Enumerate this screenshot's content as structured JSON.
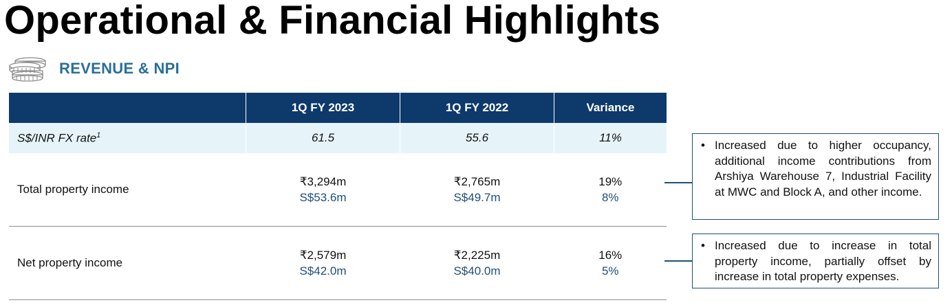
{
  "page_title": "Operational & Financial Highlights",
  "section": {
    "label": "REVENUE & NPI",
    "icon": "coins-icon"
  },
  "table": {
    "headers": [
      "",
      "1Q FY 2023",
      "1Q FY 2022",
      "Variance"
    ],
    "fx_row": {
      "label": "S$/INR FX rate",
      "footnote": "1",
      "values": [
        "61.5",
        "55.6",
        "11%"
      ]
    },
    "rows": [
      {
        "label": "Total property income",
        "fy2023": {
          "inr": "₹3,294m",
          "sgd": "S$53.6m"
        },
        "fy2022": {
          "inr": "₹2,765m",
          "sgd": "S$49.7m"
        },
        "variance": {
          "inr": "19%",
          "sgd": "8%"
        }
      },
      {
        "label": "Net property income",
        "fy2023": {
          "inr": "₹2,579m",
          "sgd": "S$42.0m"
        },
        "fy2022": {
          "inr": "₹2,225m",
          "sgd": "S$40.0m"
        },
        "variance": {
          "inr": "16%",
          "sgd": "5%"
        }
      }
    ]
  },
  "notes": [
    {
      "bullet": "•",
      "text": "Increased due to higher occupancy, additional income contributions from Arshiya Warehouse 7, Industrial Facility at MWC and Block A, and other income."
    },
    {
      "bullet": "•",
      "text": "Increased due to increase in total property income, partially offset by increase in total property expenses."
    }
  ],
  "colors": {
    "header_bg": "#0e3a6b",
    "fx_row_bg": "#e6f4fa",
    "accent": "#2a6f97",
    "sgd_text": "#1f4e79"
  }
}
